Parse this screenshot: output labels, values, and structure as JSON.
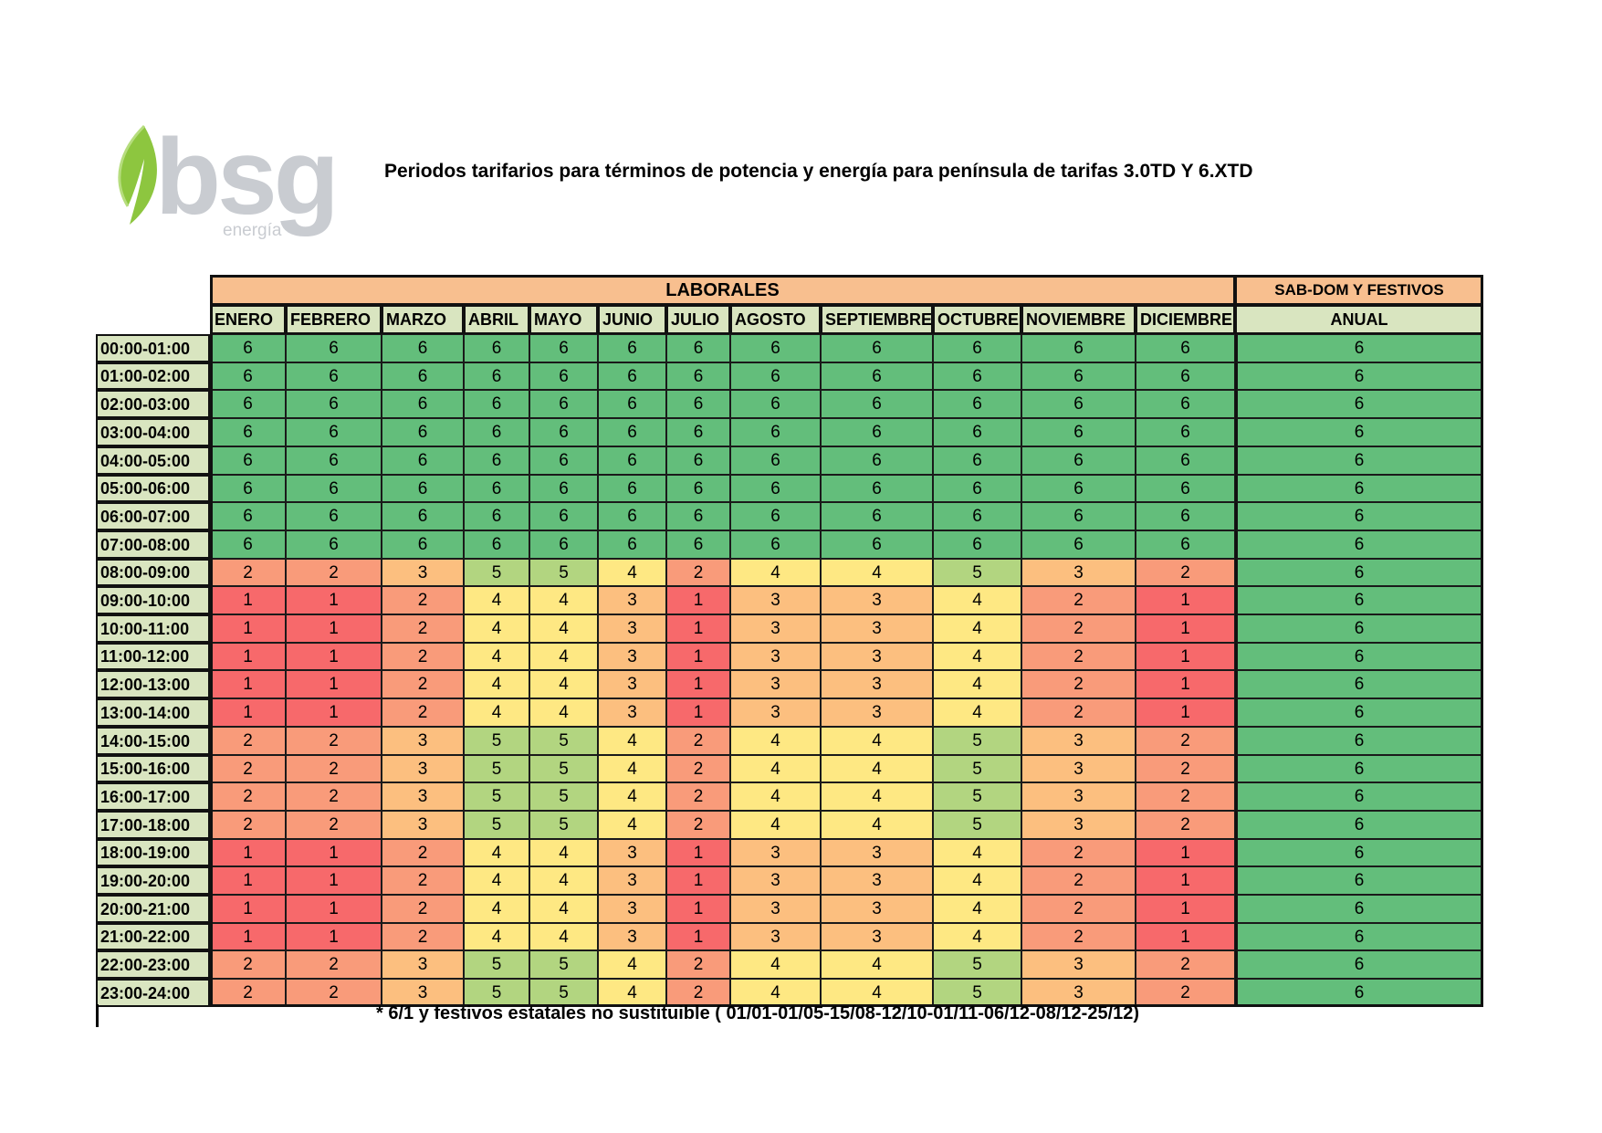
{
  "logo": {
    "text": "bsg",
    "subtext": "energía",
    "icon": "leaf-icon"
  },
  "title": "Periodos tarifarios para términos de potencia y energía para península  de tarifas 3.0TD Y 6.XTD",
  "table": {
    "group_headers": {
      "laborales": "LABORALES",
      "weekend": "SAB-DOM Y FESTIVOS"
    },
    "months": [
      "ENERO",
      "FEBRERO",
      "MARZO",
      "ABRIL",
      "MAYO",
      "JUNIO",
      "JULIO",
      "AGOSTO",
      "SEPTIEMBRE",
      "OCTUBRE",
      "NOVIEMBRE",
      "DICIEMBRE"
    ],
    "anual_label": "ANUAL",
    "rows": [
      {
        "hour": "00:00-01:00",
        "values": [
          "6",
          "6",
          "6",
          "6",
          "6",
          "6",
          "6",
          "6",
          "6",
          "6",
          "6",
          "6"
        ],
        "anual": "6"
      },
      {
        "hour": "01:00-02:00",
        "values": [
          "6",
          "6",
          "6",
          "6",
          "6",
          "6",
          "6",
          "6",
          "6",
          "6",
          "6",
          "6"
        ],
        "anual": "6"
      },
      {
        "hour": "02:00-03:00",
        "values": [
          "6",
          "6",
          "6",
          "6",
          "6",
          "6",
          "6",
          "6",
          "6",
          "6",
          "6",
          "6"
        ],
        "anual": "6"
      },
      {
        "hour": "03:00-04:00",
        "values": [
          "6",
          "6",
          "6",
          "6",
          "6",
          "6",
          "6",
          "6",
          "6",
          "6",
          "6",
          "6"
        ],
        "anual": "6"
      },
      {
        "hour": "04:00-05:00",
        "values": [
          "6",
          "6",
          "6",
          "6",
          "6",
          "6",
          "6",
          "6",
          "6",
          "6",
          "6",
          "6"
        ],
        "anual": "6"
      },
      {
        "hour": "05:00-06:00",
        "values": [
          "6",
          "6",
          "6",
          "6",
          "6",
          "6",
          "6",
          "6",
          "6",
          "6",
          "6",
          "6"
        ],
        "anual": "6"
      },
      {
        "hour": "06:00-07:00",
        "values": [
          "6",
          "6",
          "6",
          "6",
          "6",
          "6",
          "6",
          "6",
          "6",
          "6",
          "6",
          "6"
        ],
        "anual": "6"
      },
      {
        "hour": "07:00-08:00",
        "values": [
          "6",
          "6",
          "6",
          "6",
          "6",
          "6",
          "6",
          "6",
          "6",
          "6",
          "6",
          "6"
        ],
        "anual": "6"
      },
      {
        "hour": "08:00-09:00",
        "values": [
          "2",
          "2",
          "3",
          "5",
          "5",
          "4",
          "2",
          "4",
          "4",
          "5",
          "3",
          "2"
        ],
        "anual": "6"
      },
      {
        "hour": "09:00-10:00",
        "values": [
          "1",
          "1",
          "2",
          "4",
          "4",
          "3",
          "1",
          "3",
          "3",
          "4",
          "2",
          "1"
        ],
        "anual": "6"
      },
      {
        "hour": "10:00-11:00",
        "values": [
          "1",
          "1",
          "2",
          "4",
          "4",
          "3",
          "1",
          "3",
          "3",
          "4",
          "2",
          "1"
        ],
        "anual": "6"
      },
      {
        "hour": "11:00-12:00",
        "values": [
          "1",
          "1",
          "2",
          "4",
          "4",
          "3",
          "1",
          "3",
          "3",
          "4",
          "2",
          "1"
        ],
        "anual": "6"
      },
      {
        "hour": "12:00-13:00",
        "values": [
          "1",
          "1",
          "2",
          "4",
          "4",
          "3",
          "1",
          "3",
          "3",
          "4",
          "2",
          "1"
        ],
        "anual": "6"
      },
      {
        "hour": "13:00-14:00",
        "values": [
          "1",
          "1",
          "2",
          "4",
          "4",
          "3",
          "1",
          "3",
          "3",
          "4",
          "2",
          "1"
        ],
        "anual": "6"
      },
      {
        "hour": "14:00-15:00",
        "values": [
          "2",
          "2",
          "3",
          "5",
          "5",
          "4",
          "2",
          "4",
          "4",
          "5",
          "3",
          "2"
        ],
        "anual": "6"
      },
      {
        "hour": "15:00-16:00",
        "values": [
          "2",
          "2",
          "3",
          "5",
          "5",
          "4",
          "2",
          "4",
          "4",
          "5",
          "3",
          "2"
        ],
        "anual": "6"
      },
      {
        "hour": "16:00-17:00",
        "values": [
          "2",
          "2",
          "3",
          "5",
          "5",
          "4",
          "2",
          "4",
          "4",
          "5",
          "3",
          "2"
        ],
        "anual": "6"
      },
      {
        "hour": "17:00-18:00",
        "values": [
          "2",
          "2",
          "3",
          "5",
          "5",
          "4",
          "2",
          "4",
          "4",
          "5",
          "3",
          "2"
        ],
        "anual": "6"
      },
      {
        "hour": "18:00-19:00",
        "values": [
          "1",
          "1",
          "2",
          "4",
          "4",
          "3",
          "1",
          "3",
          "3",
          "4",
          "2",
          "1"
        ],
        "anual": "6"
      },
      {
        "hour": "19:00-20:00",
        "values": [
          "1",
          "1",
          "2",
          "4",
          "4",
          "3",
          "1",
          "3",
          "3",
          "4",
          "2",
          "1"
        ],
        "anual": "6"
      },
      {
        "hour": "20:00-21:00",
        "values": [
          "1",
          "1",
          "2",
          "4",
          "4",
          "3",
          "1",
          "3",
          "3",
          "4",
          "2",
          "1"
        ],
        "anual": "6"
      },
      {
        "hour": "21:00-22:00",
        "values": [
          "1",
          "1",
          "2",
          "4",
          "4",
          "3",
          "1",
          "3",
          "3",
          "4",
          "2",
          "1"
        ],
        "anual": "6"
      },
      {
        "hour": "22:00-23:00",
        "values": [
          "2",
          "2",
          "3",
          "5",
          "5",
          "4",
          "2",
          "4",
          "4",
          "5",
          "3",
          "2"
        ],
        "anual": "6"
      },
      {
        "hour": "23:00-24:00",
        "values": [
          "2",
          "2",
          "3",
          "5",
          "5",
          "4",
          "2",
          "4",
          "4",
          "5",
          "3",
          "2"
        ],
        "anual": "6"
      }
    ]
  },
  "period_colors": {
    "1": "#f7696b",
    "2": "#f99b7a",
    "3": "#fcbf7f",
    "4": "#fee883",
    "5": "#b2d580",
    "6": "#63be7b"
  },
  "footnote": "* 6/1 y festivos estatales no sustituible ( 01/01-01/05-15/08-12/10-01/11-06/12-08/12-25/12)"
}
